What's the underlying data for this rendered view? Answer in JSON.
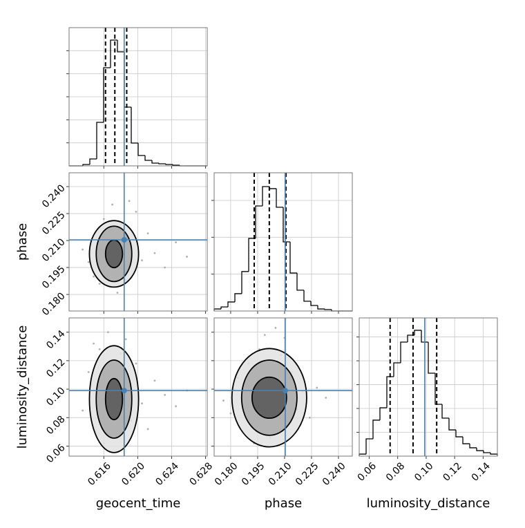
{
  "chart_data": {
    "type": "corner",
    "truth_color": "#4682b4",
    "line_color": "#000000",
    "grid": true,
    "contour_fills": [
      "#e2e2e2",
      "#a8a8a8",
      "#555555"
    ],
    "point_color": "#b0b0b0",
    "parameters": [
      {
        "name": "geocent_time",
        "lim": [
          0.6119,
          0.6282
        ],
        "ticks": [
          0.616,
          {
            "value": 0.62,
            "label": "0.620"
          },
          0.624,
          0.628
        ],
        "truth": 0.6184,
        "quantiles": [
          0.6162,
          0.6173,
          0.6187
        ],
        "bins": [
          0.6119,
          0.612715,
          0.61353,
          0.614345,
          0.61516,
          0.615975,
          0.61679,
          0.617605,
          0.61842,
          0.619235,
          0.62005,
          0.620865,
          0.62168,
          0.622495,
          0.62331,
          0.624125,
          0.62494,
          0.625755,
          0.62657,
          0.627385,
          0.6282
        ],
        "counts": [
          0,
          0,
          12,
          60,
          378,
          852,
          1092,
          990,
          510,
          198,
          90,
          48,
          24,
          18,
          12,
          6,
          0,
          0,
          0,
          0
        ],
        "count_lim": [
          0,
          1200
        ],
        "count_ticks": [
          200,
          400,
          600,
          800,
          1000
        ]
      },
      {
        "name": "phase",
        "lim": [
          0.1708,
          0.2477
        ],
        "ticks": [
          {
            "value": 0.18,
            "label": "0.180"
          },
          0.195,
          {
            "value": 0.21,
            "label": "0.210"
          },
          0.225,
          {
            "value": 0.24,
            "label": "0.240"
          }
        ],
        "truth": 0.2104,
        "quantiles": [
          0.1931,
          0.2015,
          0.2108
        ],
        "bins": [
          0.1708,
          0.174645,
          0.17849,
          0.182335,
          0.18618,
          0.190025,
          0.19387,
          0.197715,
          0.20156,
          0.205405,
          0.20925,
          0.213095,
          0.21694,
          0.220785,
          0.22463,
          0.228475,
          0.23232,
          0.236165,
          0.24001,
          0.243855,
          0.2477
        ],
        "counts": [
          11,
          22,
          49,
          94,
          214,
          394,
          570,
          675,
          664,
          563,
          375,
          206,
          113,
          53,
          30,
          11,
          8,
          0,
          0,
          0
        ],
        "count_lim": [
          0,
          750
        ],
        "count_ticks": [
          200,
          400,
          600
        ]
      },
      {
        "name": "luminosity_distance",
        "lim": [
          0.053,
          0.15
        ],
        "ticks": [
          0.06,
          0.08,
          {
            "value": 0.1,
            "label": "0.10"
          },
          0.12,
          0.14
        ],
        "truth": 0.099,
        "quantiles": [
          0.0747,
          0.0908,
          0.1074
        ],
        "bins": [
          0.053,
          0.05785,
          0.0627,
          0.06755,
          0.0724,
          0.07725,
          0.0821,
          0.08695,
          0.0918,
          0.09665,
          0.1015,
          0.10635,
          0.1112,
          0.11605,
          0.1209,
          0.12575,
          0.1306,
          0.13545,
          0.1403,
          0.14515,
          0.15
        ],
        "counts": [
          17,
          145,
          302,
          406,
          667,
          783,
          957,
          1015,
          1056,
          957,
          696,
          435,
          319,
          220,
          162,
          104,
          70,
          46,
          29,
          17
        ],
        "count_lim": [
          0,
          1160
        ],
        "count_ticks": [
          200,
          400,
          600,
          800,
          1000
        ]
      }
    ],
    "pairs": [
      {
        "x": 0,
        "y": 1,
        "contours": [
          {
            "center": [
              0.6172,
              0.2026
            ],
            "radius": [
              0.0029,
              0.0185
            ]
          },
          {
            "center": [
              0.6172,
              0.2026
            ],
            "radius": [
              0.0021,
              0.0154
            ]
          },
          {
            "center": [
              0.6172,
              0.2026
            ],
            "radius": [
              0.001,
              0.0077
            ]
          }
        ],
        "points": {
          "x": [
            0.6135,
            0.6142,
            0.615,
            0.6155,
            0.616,
            0.6165,
            0.617,
            0.6176,
            0.618,
            0.6186,
            0.6192,
            0.6198,
            0.6205,
            0.6212,
            0.622,
            0.6232,
            0.6245,
            0.6258,
            0.6148,
            0.619
          ],
          "y": [
            0.205,
            0.198,
            0.214,
            0.186,
            0.222,
            0.192,
            0.23,
            0.181,
            0.219,
            0.188,
            0.208,
            0.226,
            0.199,
            0.214,
            0.203,
            0.195,
            0.209,
            0.201,
            0.19,
            0.232
          ]
        }
      },
      {
        "x": 0,
        "y": 2,
        "contours": [
          {
            "center": [
              0.6172,
              0.093
            ],
            "radius": [
              0.0029,
              0.0375
            ]
          },
          {
            "center": [
              0.6172,
              0.093
            ],
            "radius": [
              0.0021,
              0.0274
            ]
          },
          {
            "center": [
              0.6172,
              0.093
            ],
            "radius": [
              0.001,
              0.0144
            ]
          }
        ],
        "points": {
          "x": [
            0.6135,
            0.6142,
            0.615,
            0.6155,
            0.616,
            0.6165,
            0.617,
            0.6176,
            0.618,
            0.6186,
            0.6192,
            0.6198,
            0.6205,
            0.6212,
            0.622,
            0.6232,
            0.6245,
            0.6258,
            0.6148,
            0.619
          ],
          "y": [
            0.085,
            0.112,
            0.07,
            0.128,
            0.062,
            0.14,
            0.101,
            0.066,
            0.125,
            0.135,
            0.078,
            0.118,
            0.09,
            0.072,
            0.106,
            0.096,
            0.088,
            0.099,
            0.132,
            0.064
          ]
        }
      },
      {
        "x": 1,
        "y": 2,
        "contours": [
          {
            "center": [
              0.2015,
              0.094
            ],
            "radius": [
              0.0208,
              0.0345
            ]
          },
          {
            "center": [
              0.2015,
              0.094
            ],
            "radius": [
              0.0154,
              0.0264
            ]
          },
          {
            "center": [
              0.2015,
              0.094
            ],
            "radius": [
              0.0096,
              0.0144
            ]
          }
        ],
        "points": {
          "x": [
            0.176,
            0.18,
            0.184,
            0.187,
            0.19,
            0.193,
            0.196,
            0.199,
            0.202,
            0.205,
            0.208,
            0.211,
            0.214,
            0.217,
            0.22,
            0.224,
            0.228,
            0.233,
            0.182,
            0.21
          ],
          "y": [
            0.092,
            0.083,
            0.108,
            0.07,
            0.118,
            0.062,
            0.128,
            0.138,
            0.066,
            0.143,
            0.124,
            0.074,
            0.112,
            0.086,
            0.098,
            0.08,
            0.101,
            0.094,
            0.1,
            0.136
          ]
        }
      }
    ]
  }
}
